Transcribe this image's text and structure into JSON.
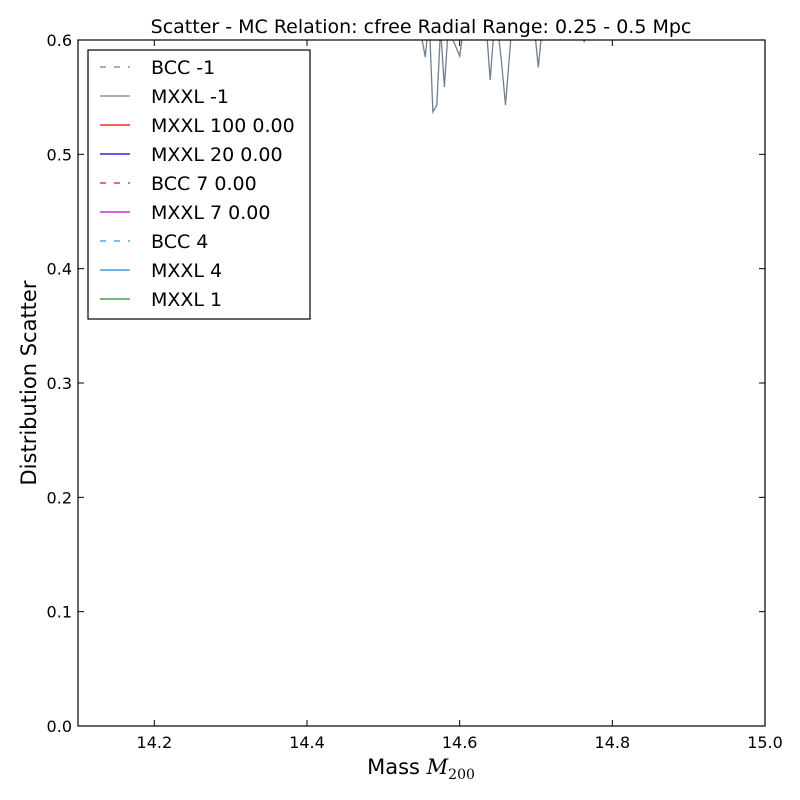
{
  "chart_data": {
    "type": "line",
    "title": "Scatter - MC Relation: cfree Radial Range: 0.25 - 0.5 Mpc",
    "xlabel_prefix": "Mass ",
    "xlabel_math": "M",
    "xlabel_sub": "200",
    "ylabel": "Distribution Scatter",
    "xlim": [
      14.1,
      15.0
    ],
    "ylim": [
      0.0,
      0.6
    ],
    "xticks": [
      14.2,
      14.4,
      14.6,
      14.8,
      15.0
    ],
    "xtick_labels": [
      "14.2",
      "14.4",
      "14.6",
      "14.8",
      "15.0"
    ],
    "yticks": [
      0.0,
      0.1,
      0.2,
      0.3,
      0.4,
      0.5,
      0.6
    ],
    "ytick_labels": [
      "0.0",
      "0.1",
      "0.2",
      "0.3",
      "0.4",
      "0.5",
      "0.6"
    ],
    "legend_position": "top-left",
    "series": [
      {
        "name": "BCC -1",
        "color": "#708090",
        "dash": "dashed",
        "x": [],
        "y": []
      },
      {
        "name": "MXXL -1",
        "color": "#708090",
        "dash": "solid",
        "x": [
          14.548,
          14.555,
          14.56,
          14.565,
          14.57,
          14.575,
          14.58,
          14.585,
          14.595,
          14.6,
          14.605,
          14.635,
          14.64,
          14.645,
          14.65,
          14.655,
          14.66,
          14.668,
          14.698,
          14.703,
          14.708,
          14.76,
          14.763,
          14.767
        ],
        "y": [
          0.61,
          0.585,
          0.62,
          0.537,
          0.543,
          0.61,
          0.559,
          0.61,
          0.594,
          0.586,
          0.61,
          0.61,
          0.565,
          0.61,
          0.61,
          0.58,
          0.543,
          0.61,
          0.61,
          0.576,
          0.61,
          0.61,
          0.598,
          0.61
        ]
      },
      {
        "name": "MXXL 100 0.00",
        "color": "#ff0000",
        "dash": "solid",
        "x": [],
        "y": []
      },
      {
        "name": "MXXL 20 0.00",
        "color": "#0000cc",
        "dash": "solid",
        "x": [],
        "y": []
      },
      {
        "name": "BCC 7 0.00",
        "color": "#cc00aa",
        "dash": "dashed",
        "x": [],
        "y": []
      },
      {
        "name": "MXXL 7 0.00",
        "color": "#cc00cc",
        "dash": "solid",
        "x": [],
        "y": []
      },
      {
        "name": "BCC 4",
        "color": "#3399dd",
        "dash": "dashed",
        "x": [],
        "y": []
      },
      {
        "name": "MXXL 4",
        "color": "#1a8fd6",
        "dash": "solid",
        "x": [],
        "y": []
      },
      {
        "name": "MXXL 1",
        "color": "#228822",
        "dash": "solid",
        "x": [],
        "y": []
      }
    ]
  }
}
